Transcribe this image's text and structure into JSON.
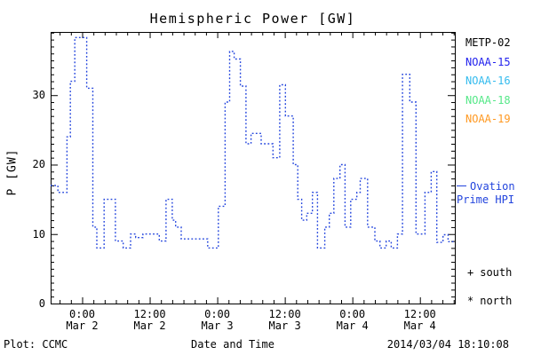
{
  "title": "Hemispheric Power [GW]",
  "legend": {
    "satellites": [
      {
        "label": "METP-02",
        "color": "#000000"
      },
      {
        "label": "NOAA-15",
        "color": "#2222ee"
      },
      {
        "label": "NOAA-16",
        "color": "#33bbee"
      },
      {
        "label": "NOAA-18",
        "color": "#55e888"
      },
      {
        "label": "NOAA-19",
        "color": "#ff9922"
      }
    ]
  },
  "ovation": {
    "line1": "Ovation",
    "line2": "Prime HPI",
    "color": "#2244dd"
  },
  "markers": [
    {
      "symbol": "+",
      "label": "south"
    },
    {
      "symbol": "*",
      "label": "north"
    }
  ],
  "footer": {
    "credit": "Plot: CCMC",
    "xtitle": "Date and Time",
    "timestamp": "2014/03/04 18:10:08"
  },
  "chart_data": {
    "type": "line",
    "step": true,
    "line_style": "dotted",
    "title": "Hemispheric Power [GW]",
    "xlabel": "Date and Time",
    "ylabel": "P [GW]",
    "x_unit": "hours relative to Mar 2 00:00",
    "xlim": [
      -5.6,
      66.2
    ],
    "ylim": [
      0,
      39.1
    ],
    "grid": false,
    "x_minor_step": 2,
    "y_minor_step": 1,
    "xticks": [
      {
        "pos": 0,
        "line1": "0:00",
        "line2": "Mar 2"
      },
      {
        "pos": 12,
        "line1": "12:00",
        "line2": "Mar 2"
      },
      {
        "pos": 24,
        "line1": "0:00",
        "line2": "Mar 3"
      },
      {
        "pos": 36,
        "line1": "12:00",
        "line2": "Mar 3"
      },
      {
        "pos": 48,
        "line1": "0:00",
        "line2": "Mar 4"
      },
      {
        "pos": 60,
        "line1": "12:00",
        "line2": "Mar 4"
      }
    ],
    "yticks": [
      0,
      10,
      20,
      30
    ],
    "series": [
      {
        "name": "Ovation Prime HPI",
        "color": "#2244dd",
        "points": [
          [
            -5.6,
            17
          ],
          [
            -4.3,
            16
          ],
          [
            -2.7,
            24
          ],
          [
            -2.1,
            32
          ],
          [
            -1.3,
            38.3
          ],
          [
            0.8,
            31
          ],
          [
            1.9,
            11
          ],
          [
            2.6,
            8
          ],
          [
            3.9,
            15
          ],
          [
            5.9,
            9
          ],
          [
            7.3,
            8
          ],
          [
            8.6,
            10
          ],
          [
            9.5,
            9.5
          ],
          [
            10.8,
            10
          ],
          [
            13.7,
            9
          ],
          [
            14.9,
            15
          ],
          [
            16.0,
            12
          ],
          [
            16.6,
            11
          ],
          [
            17.6,
            9.3
          ],
          [
            22.3,
            8
          ],
          [
            24.2,
            14
          ],
          [
            25.4,
            29
          ],
          [
            26.2,
            36.3
          ],
          [
            27.0,
            35.2
          ],
          [
            28.1,
            31.3
          ],
          [
            29.1,
            23
          ],
          [
            30.0,
            24.5
          ],
          [
            31.8,
            23
          ],
          [
            33.9,
            21
          ],
          [
            35.1,
            31.5
          ],
          [
            36.1,
            27
          ],
          [
            37.5,
            20
          ],
          [
            38.3,
            15
          ],
          [
            39.0,
            12
          ],
          [
            39.9,
            13
          ],
          [
            40.9,
            16
          ],
          [
            41.8,
            8
          ],
          [
            43.1,
            11
          ],
          [
            43.9,
            13
          ],
          [
            44.7,
            18
          ],
          [
            45.8,
            20
          ],
          [
            46.7,
            11
          ],
          [
            47.7,
            15
          ],
          [
            48.8,
            16
          ],
          [
            49.4,
            18
          ],
          [
            50.7,
            11
          ],
          [
            52.0,
            9
          ],
          [
            52.9,
            8
          ],
          [
            54.0,
            9
          ],
          [
            54.9,
            8
          ],
          [
            56.0,
            10
          ],
          [
            56.9,
            33
          ],
          [
            58.2,
            29
          ],
          [
            59.3,
            10
          ],
          [
            60.9,
            16
          ],
          [
            62.0,
            19
          ],
          [
            63.0,
            8.8
          ],
          [
            64.1,
            9.9
          ],
          [
            65.0,
            8.9
          ]
        ]
      }
    ],
    "legend_entries": [
      "METP-02",
      "NOAA-15",
      "NOAA-16",
      "NOAA-18",
      "NOAA-19",
      "Ovation Prime HPI"
    ],
    "legend_position": "right"
  }
}
